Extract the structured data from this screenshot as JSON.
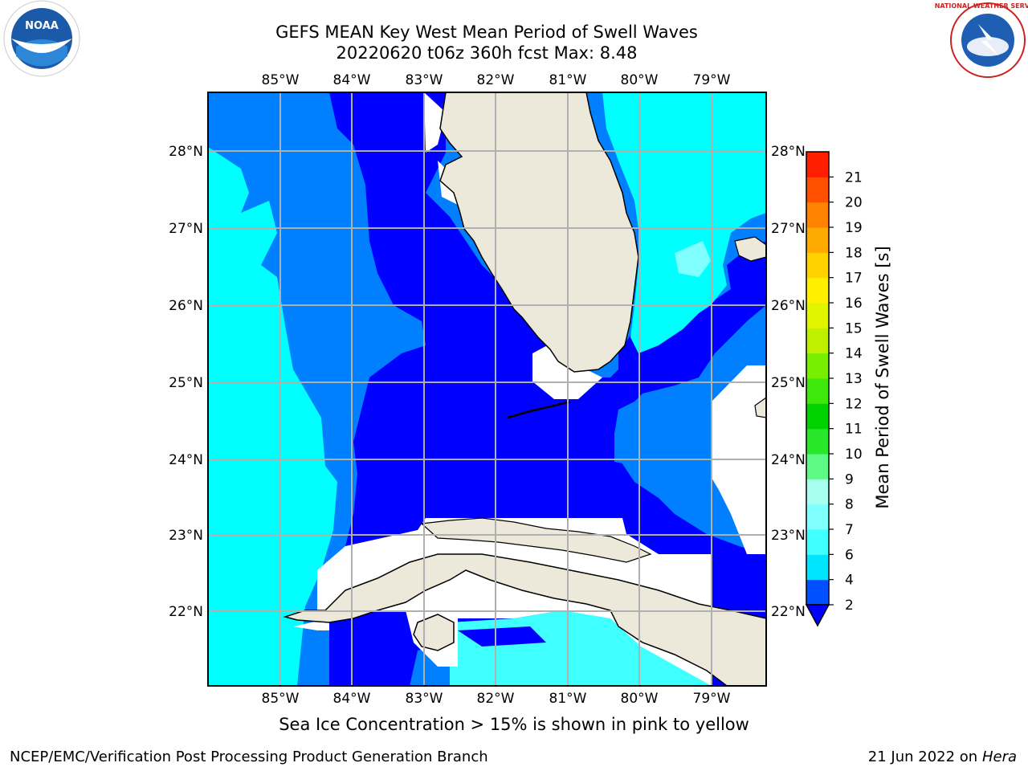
{
  "title_line1": "GEFS MEAN Key West Mean Period of Swell Waves",
  "title_line2": "20220620 t06z 360h fcst   Max: 8.48",
  "footer_note": "Sea Ice Concentration > 15% is shown in pink to yellow",
  "footer_left": "NCEP/EMC/Verification Post Processing Product Generation Branch",
  "footer_date": "21 Jun 2022 on",
  "footer_machine": "Hera",
  "logos": {
    "noaa": "NOAA",
    "nws": "NATIONAL WEATHER SERVICE"
  },
  "map": {
    "lon_labels": [
      "85°W",
      "84°W",
      "83°W",
      "82°W",
      "81°W",
      "80°W",
      "79°W"
    ],
    "lat_labels": [
      "28°N",
      "27°N",
      "26°N",
      "25°N",
      "24°N",
      "23°N",
      "22°N"
    ],
    "lon_range": [
      -86,
      -78.25
    ],
    "lat_range": [
      21.05,
      28.75
    ]
  },
  "colorbar": {
    "label": "Mean Period of Swell Waves [s]",
    "ticks": [
      "2",
      "4",
      "6",
      "7",
      "8",
      "9",
      "10",
      "11",
      "12",
      "13",
      "14",
      "15",
      "16",
      "17",
      "18",
      "19",
      "20",
      "21"
    ],
    "colors": [
      "#0050ff",
      "#00e5ff",
      "#40ffff",
      "#80ffff",
      "#a8fff0",
      "#5dfb86",
      "#28e628",
      "#00d200",
      "#3ee80a",
      "#78ee00",
      "#bef000",
      "#e2f500",
      "#fff000",
      "#ffd200",
      "#ffaa00",
      "#ff8200",
      "#ff5000",
      "#ff1e00"
    ],
    "extend_color": "#0000ff"
  },
  "legend_classes": {
    "deep_blue": "#0000ff",
    "mid_blue": "#0080ff",
    "cyan": "#00ffff",
    "light_cyan": "#40ffff",
    "land": "#ede9da"
  }
}
